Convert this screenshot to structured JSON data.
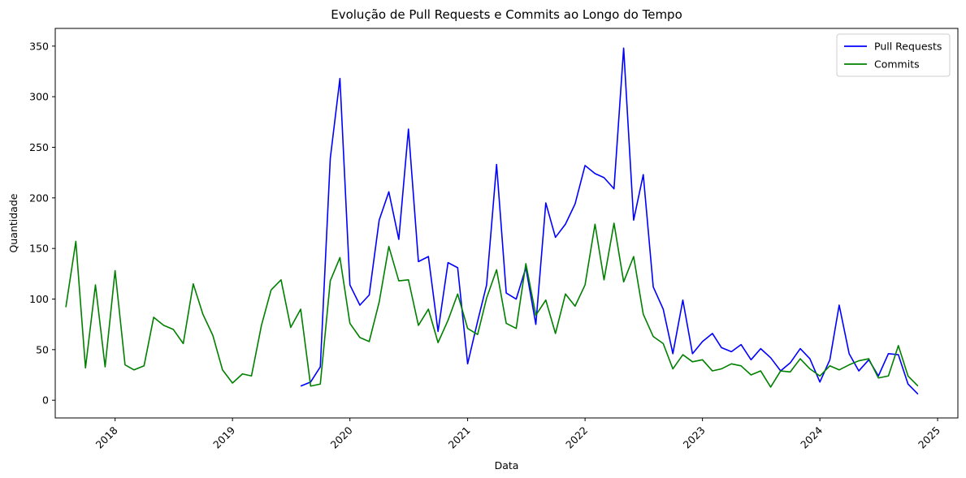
{
  "chart_data": {
    "type": "line",
    "title": "Evolução de Pull Requests e Commits ao Longo do Tempo",
    "xlabel": "Data",
    "ylabel": "Quantidade",
    "xlim": [
      "2017-06-29",
      "2025-03-05"
    ],
    "ylim": [
      -17.5,
      367.5
    ],
    "x_ticks": [
      "2018",
      "2019",
      "2020",
      "2021",
      "2022",
      "2023",
      "2024",
      "2025"
    ],
    "y_ticks": [
      0,
      50,
      100,
      150,
      200,
      250,
      300,
      350
    ],
    "grid": false,
    "legend_position": "top-right",
    "series": [
      {
        "name": "Pull Requests",
        "color": "#0000ff",
        "points": [
          [
            "2019-08-01",
            14
          ],
          [
            "2019-09-01",
            18
          ],
          [
            "2019-10-01",
            33
          ],
          [
            "2019-11-01",
            239
          ],
          [
            "2019-12-01",
            318
          ],
          [
            "2020-01-01",
            114
          ],
          [
            "2020-02-01",
            94
          ],
          [
            "2020-03-01",
            104
          ],
          [
            "2020-04-01",
            178
          ],
          [
            "2020-05-01",
            206
          ],
          [
            "2020-06-01",
            159
          ],
          [
            "2020-07-01",
            268
          ],
          [
            "2020-08-01",
            137
          ],
          [
            "2020-09-01",
            142
          ],
          [
            "2020-10-01",
            68
          ],
          [
            "2020-11-01",
            136
          ],
          [
            "2020-12-01",
            131
          ],
          [
            "2021-01-01",
            36
          ],
          [
            "2021-02-01",
            78
          ],
          [
            "2021-03-01",
            114
          ],
          [
            "2021-04-01",
            233
          ],
          [
            "2021-05-01",
            106
          ],
          [
            "2021-06-01",
            100
          ],
          [
            "2021-07-01",
            131
          ],
          [
            "2021-08-01",
            75
          ],
          [
            "2021-09-01",
            195
          ],
          [
            "2021-10-01",
            161
          ],
          [
            "2021-11-01",
            174
          ],
          [
            "2021-12-01",
            194
          ],
          [
            "2022-01-01",
            232
          ],
          [
            "2022-02-01",
            224
          ],
          [
            "2022-03-01",
            220
          ],
          [
            "2022-04-01",
            209
          ],
          [
            "2022-05-01",
            348
          ],
          [
            "2022-06-01",
            178
          ],
          [
            "2022-07-01",
            223
          ],
          [
            "2022-08-01",
            112
          ],
          [
            "2022-09-01",
            90
          ],
          [
            "2022-10-01",
            46
          ],
          [
            "2022-11-01",
            99
          ],
          [
            "2022-12-01",
            46
          ],
          [
            "2023-01-01",
            58
          ],
          [
            "2023-02-01",
            66
          ],
          [
            "2023-03-01",
            52
          ],
          [
            "2023-04-01",
            48
          ],
          [
            "2023-05-01",
            55
          ],
          [
            "2023-06-01",
            40
          ],
          [
            "2023-07-01",
            51
          ],
          [
            "2023-08-01",
            42
          ],
          [
            "2023-09-01",
            29
          ],
          [
            "2023-10-01",
            37
          ],
          [
            "2023-11-01",
            51
          ],
          [
            "2023-12-01",
            41
          ],
          [
            "2024-01-01",
            18
          ],
          [
            "2024-02-01",
            40
          ],
          [
            "2024-03-01",
            94
          ],
          [
            "2024-04-01",
            46
          ],
          [
            "2024-05-01",
            29
          ],
          [
            "2024-06-01",
            40
          ],
          [
            "2024-07-01",
            24
          ],
          [
            "2024-08-01",
            46
          ],
          [
            "2024-09-01",
            45
          ],
          [
            "2024-10-01",
            16
          ],
          [
            "2024-11-01",
            6
          ]
        ]
      },
      {
        "name": "Commits",
        "color": "#008000",
        "points": [
          [
            "2017-08-01",
            92
          ],
          [
            "2017-09-01",
            157
          ],
          [
            "2017-10-01",
            32
          ],
          [
            "2017-11-01",
            114
          ],
          [
            "2017-12-01",
            33
          ],
          [
            "2018-01-01",
            128
          ],
          [
            "2018-02-01",
            35
          ],
          [
            "2018-03-01",
            30
          ],
          [
            "2018-04-01",
            34
          ],
          [
            "2018-05-01",
            82
          ],
          [
            "2018-06-01",
            74
          ],
          [
            "2018-07-01",
            70
          ],
          [
            "2018-08-01",
            56
          ],
          [
            "2018-09-01",
            115
          ],
          [
            "2018-10-01",
            85
          ],
          [
            "2018-11-01",
            64
          ],
          [
            "2018-12-01",
            30
          ],
          [
            "2019-01-01",
            17
          ],
          [
            "2019-02-01",
            26
          ],
          [
            "2019-03-01",
            24
          ],
          [
            "2019-04-01",
            74
          ],
          [
            "2019-05-01",
            109
          ],
          [
            "2019-06-01",
            119
          ],
          [
            "2019-07-01",
            72
          ],
          [
            "2019-08-01",
            90
          ],
          [
            "2019-09-01",
            14
          ],
          [
            "2019-10-01",
            16
          ],
          [
            "2019-11-01",
            118
          ],
          [
            "2019-12-01",
            141
          ],
          [
            "2020-01-01",
            76
          ],
          [
            "2020-02-01",
            62
          ],
          [
            "2020-03-01",
            58
          ],
          [
            "2020-04-01",
            97
          ],
          [
            "2020-05-01",
            152
          ],
          [
            "2020-06-01",
            118
          ],
          [
            "2020-07-01",
            119
          ],
          [
            "2020-08-01",
            74
          ],
          [
            "2020-09-01",
            90
          ],
          [
            "2020-10-01",
            57
          ],
          [
            "2020-11-01",
            79
          ],
          [
            "2020-12-01",
            105
          ],
          [
            "2021-01-01",
            71
          ],
          [
            "2021-02-01",
            65
          ],
          [
            "2021-03-01",
            101
          ],
          [
            "2021-04-01",
            129
          ],
          [
            "2021-05-01",
            76
          ],
          [
            "2021-06-01",
            71
          ],
          [
            "2021-07-01",
            135
          ],
          [
            "2021-08-01",
            84
          ],
          [
            "2021-09-01",
            99
          ],
          [
            "2021-10-01",
            66
          ],
          [
            "2021-11-01",
            105
          ],
          [
            "2021-12-01",
            93
          ],
          [
            "2022-01-01",
            114
          ],
          [
            "2022-02-01",
            174
          ],
          [
            "2022-03-01",
            119
          ],
          [
            "2022-04-01",
            175
          ],
          [
            "2022-05-01",
            117
          ],
          [
            "2022-06-01",
            142
          ],
          [
            "2022-07-01",
            85
          ],
          [
            "2022-08-01",
            63
          ],
          [
            "2022-09-01",
            56
          ],
          [
            "2022-10-01",
            31
          ],
          [
            "2022-11-01",
            45
          ],
          [
            "2022-12-01",
            38
          ],
          [
            "2023-01-01",
            40
          ],
          [
            "2023-02-01",
            29
          ],
          [
            "2023-03-01",
            31
          ],
          [
            "2023-04-01",
            36
          ],
          [
            "2023-05-01",
            34
          ],
          [
            "2023-06-01",
            25
          ],
          [
            "2023-07-01",
            29
          ],
          [
            "2023-08-01",
            13
          ],
          [
            "2023-09-01",
            29
          ],
          [
            "2023-10-01",
            28
          ],
          [
            "2023-11-01",
            41
          ],
          [
            "2023-12-01",
            31
          ],
          [
            "2024-01-01",
            24
          ],
          [
            "2024-02-01",
            34
          ],
          [
            "2024-03-01",
            30
          ],
          [
            "2024-04-01",
            35
          ],
          [
            "2024-05-01",
            39
          ],
          [
            "2024-06-01",
            41
          ],
          [
            "2024-07-01",
            22
          ],
          [
            "2024-08-01",
            24
          ],
          [
            "2024-09-01",
            54
          ],
          [
            "2024-10-01",
            24
          ],
          [
            "2024-11-01",
            14
          ]
        ]
      }
    ]
  }
}
